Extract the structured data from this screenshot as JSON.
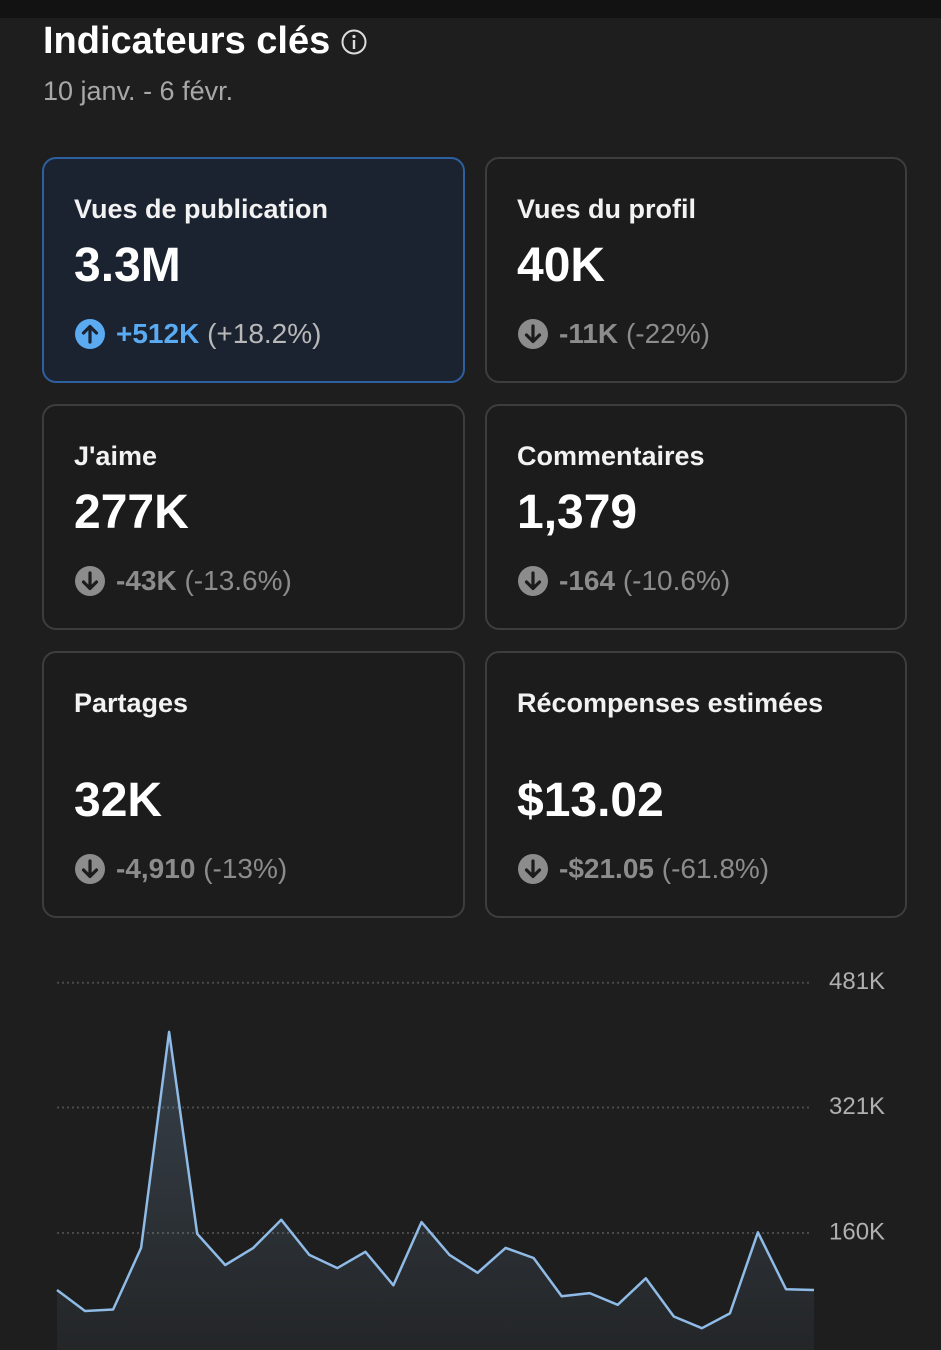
{
  "header": {
    "title": "Indicateurs clés",
    "subtitle": "10 janv. - 6 févr."
  },
  "cards": [
    {
      "label": "Vues de publication",
      "value": "3.3M",
      "delta": "+512K",
      "pct": "(+18.2%)"
    },
    {
      "label": "Vues du profil",
      "value": "40K",
      "delta": "-11K",
      "pct": "(-22%)"
    },
    {
      "label": "J'aime",
      "value": "277K",
      "delta": "-43K",
      "pct": "(-13.6%)"
    },
    {
      "label": "Commentaires",
      "value": "1,379",
      "delta": "-164",
      "pct": "(-10.6%)"
    },
    {
      "label": "Partages",
      "value": "32K",
      "delta": "-4,910",
      "pct": "(-13%)"
    },
    {
      "label": "Récompenses estimées",
      "value": "$13.02",
      "delta": "-$21.05",
      "pct": "(-61.8%)"
    }
  ],
  "chart_data": {
    "type": "line",
    "categories": [
      null,
      null,
      null,
      null,
      null,
      null,
      null,
      null,
      null,
      null,
      null,
      null,
      null,
      null,
      null,
      null,
      null,
      null,
      null,
      null,
      null,
      null,
      null,
      null,
      null,
      null,
      null,
      null
    ],
    "series": [
      {
        "color": "#8fbbe6",
        "values": [
          87000,
          60000,
          62000,
          141000,
          418000,
          159000,
          119000,
          141000,
          177000,
          132000,
          115000,
          136000,
          93000,
          174000,
          132000,
          109000,
          141000,
          128000,
          79000,
          83000,
          68000,
          102000,
          53000,
          38000,
          57000,
          161000,
          88000,
          87000
        ]
      }
    ],
    "ylim": [
      10000,
      500000
    ],
    "yticks": [
      {
        "value": 160000,
        "label": "160K"
      },
      {
        "value": 321000,
        "label": "321K"
      },
      {
        "value": 481000,
        "label": "481K"
      }
    ],
    "grid": true
  }
}
